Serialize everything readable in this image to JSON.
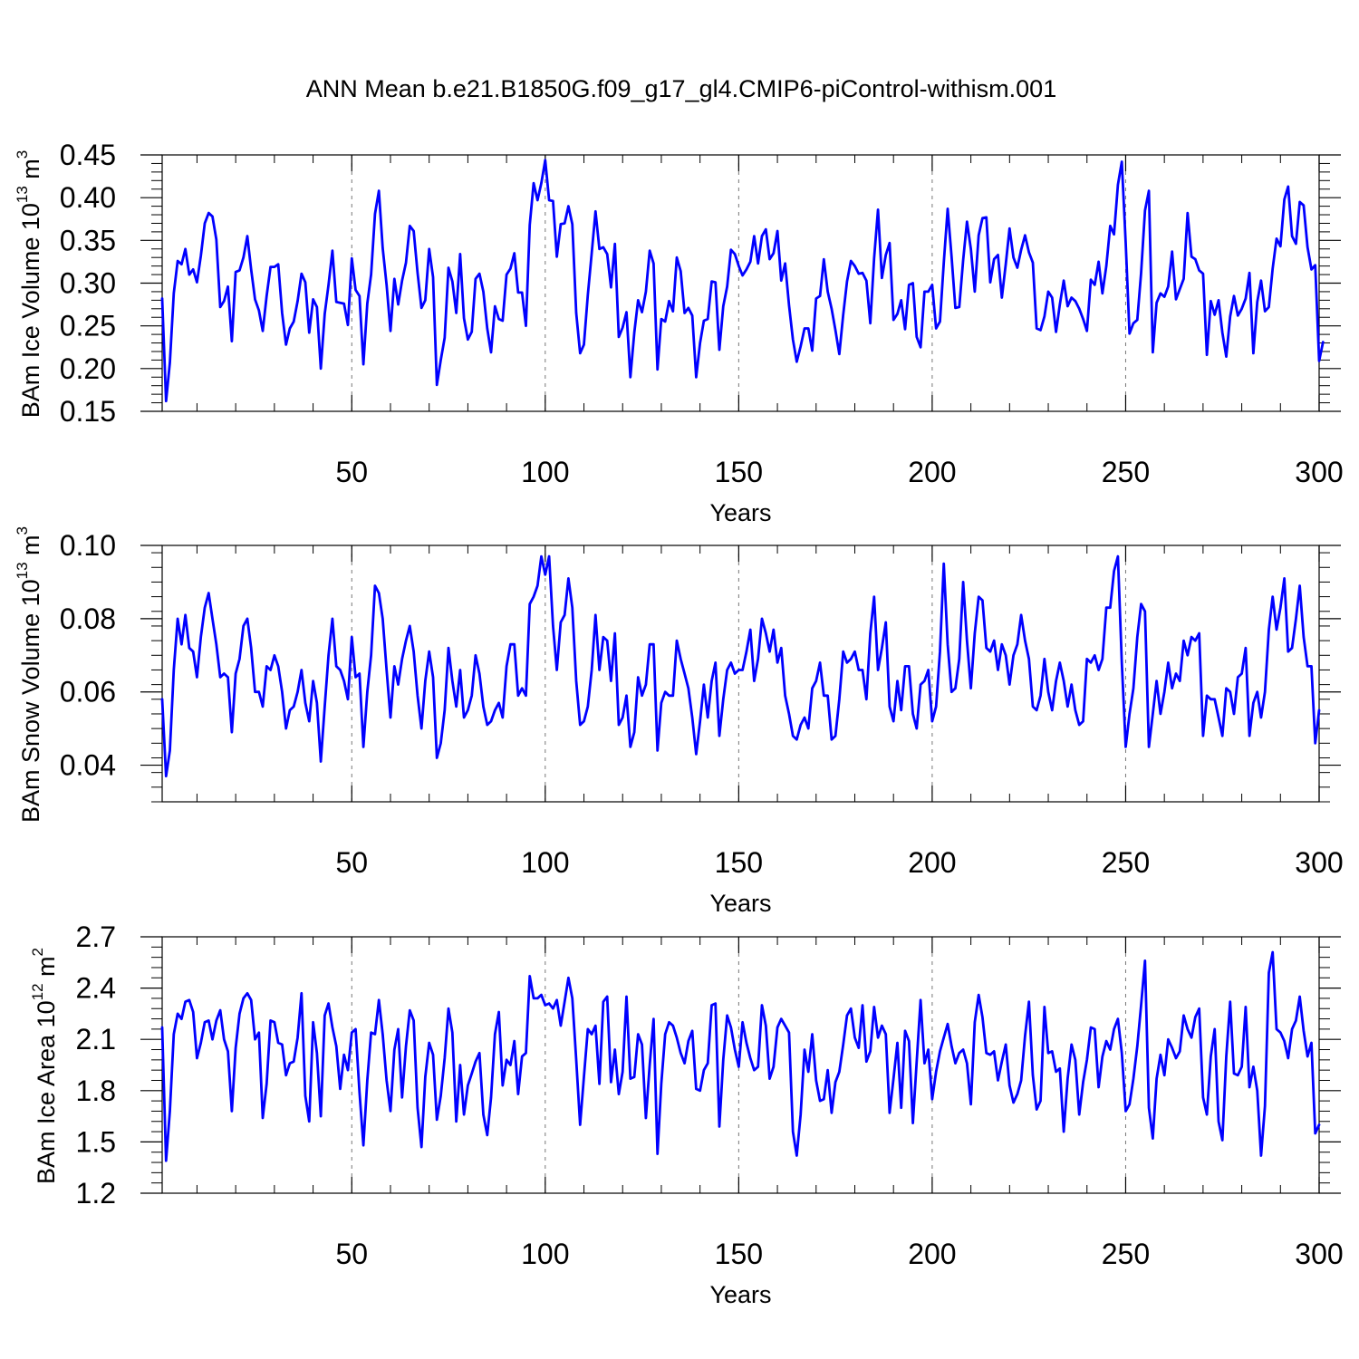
{
  "figure": {
    "title": "ANN Mean b.e21.B1850G.f09_g17_gl4.CMIP6-piControl-withism.001"
  },
  "style": {
    "line_color": "#0000ff",
    "axis_color": "#000000",
    "vline_color": "#777777"
  },
  "chart_data": [
    {
      "type": "line",
      "xlabel": "Years",
      "ylabel": "BAm Ice Volume 10",
      "ylabel_exp": "13",
      "ylabel_unit": "m",
      "ylabel_unit_exp": "3",
      "xlim": [
        1,
        300
      ],
      "ylim": [
        0.15,
        0.45
      ],
      "xticks": [
        50,
        100,
        150,
        200,
        250,
        300
      ],
      "xtick_labels": [
        "50",
        "100",
        "150",
        "200",
        "250",
        "300"
      ],
      "yticks": [
        0.15,
        0.2,
        0.25,
        0.3,
        0.35,
        0.4,
        0.45
      ],
      "ytick_labels": [
        "0.15",
        "0.20",
        "0.25",
        "0.30",
        "0.35",
        "0.40",
        "0.45"
      ],
      "vlines": [
        50,
        100,
        150,
        200,
        250
      ],
      "x_start": 1,
      "x_step": 1,
      "series": [
        {
          "values": [
            0.282,
            0.162,
            0.207,
            0.288,
            0.326,
            0.322,
            0.34,
            0.31,
            0.316,
            0.301,
            0.332,
            0.37,
            0.382,
            0.378,
            0.351,
            0.272,
            0.279,
            0.296,
            0.232,
            0.313,
            0.315,
            0.33,
            0.355,
            0.316,
            0.281,
            0.268,
            0.244,
            0.285,
            0.319,
            0.319,
            0.322,
            0.265,
            0.228,
            0.247,
            0.255,
            0.279,
            0.311,
            0.301,
            0.242,
            0.281,
            0.272,
            0.2,
            0.264,
            0.298,
            0.338,
            0.278,
            0.277,
            0.276,
            0.251,
            0.329,
            0.292,
            0.285,
            0.205,
            0.276,
            0.31,
            0.381,
            0.408,
            0.341,
            0.298,
            0.244,
            0.305,
            0.275,
            0.303,
            0.324,
            0.367,
            0.361,
            0.312,
            0.271,
            0.28,
            0.34,
            0.307,
            0.181,
            0.21,
            0.236,
            0.318,
            0.302,
            0.265,
            0.334,
            0.259,
            0.234,
            0.243,
            0.305,
            0.311,
            0.29,
            0.247,
            0.219,
            0.273,
            0.258,
            0.256,
            0.31,
            0.317,
            0.335,
            0.289,
            0.289,
            0.25,
            0.368,
            0.417,
            0.397,
            0.417,
            0.444,
            0.397,
            0.396,
            0.331,
            0.369,
            0.37,
            0.39,
            0.369,
            0.265,
            0.218,
            0.228,
            0.286,
            0.335,
            0.384,
            0.34,
            0.342,
            0.334,
            0.295,
            0.346,
            0.237,
            0.248,
            0.266,
            0.19,
            0.242,
            0.28,
            0.266,
            0.29,
            0.338,
            0.323,
            0.199,
            0.258,
            0.255,
            0.279,
            0.267,
            0.33,
            0.314,
            0.265,
            0.271,
            0.262,
            0.19,
            0.23,
            0.256,
            0.258,
            0.302,
            0.301,
            0.222,
            0.273,
            0.296,
            0.339,
            0.334,
            0.32,
            0.309,
            0.316,
            0.325,
            0.355,
            0.323,
            0.355,
            0.363,
            0.328,
            0.335,
            0.361,
            0.303,
            0.323,
            0.274,
            0.234,
            0.208,
            0.226,
            0.247,
            0.247,
            0.221,
            0.282,
            0.285,
            0.328,
            0.29,
            0.27,
            0.245,
            0.217,
            0.263,
            0.302,
            0.326,
            0.32,
            0.311,
            0.312,
            0.303,
            0.253,
            0.329,
            0.386,
            0.306,
            0.333,
            0.347,
            0.257,
            0.264,
            0.28,
            0.246,
            0.298,
            0.3,
            0.237,
            0.225,
            0.29,
            0.29,
            0.298,
            0.247,
            0.255,
            0.324,
            0.387,
            0.331,
            0.271,
            0.272,
            0.327,
            0.372,
            0.34,
            0.29,
            0.356,
            0.376,
            0.377,
            0.301,
            0.328,
            0.333,
            0.283,
            0.322,
            0.364,
            0.33,
            0.318,
            0.339,
            0.356,
            0.336,
            0.324,
            0.247,
            0.245,
            0.261,
            0.29,
            0.283,
            0.243,
            0.275,
            0.303,
            0.273,
            0.283,
            0.279,
            0.27,
            0.258,
            0.244,
            0.304,
            0.298,
            0.325,
            0.288,
            0.32,
            0.367,
            0.357,
            0.415,
            0.442,
            0.347,
            0.241,
            0.253,
            0.257,
            0.312,
            0.385,
            0.408,
            0.219,
            0.277,
            0.288,
            0.284,
            0.296,
            0.337,
            0.281,
            0.293,
            0.305,
            0.382,
            0.331,
            0.328,
            0.315,
            0.311,
            0.216,
            0.279,
            0.263,
            0.28,
            0.242,
            0.214,
            0.261,
            0.285,
            0.262,
            0.27,
            0.282,
            0.312,
            0.218,
            0.278,
            0.303,
            0.267,
            0.272,
            0.317,
            0.352,
            0.343,
            0.398,
            0.413,
            0.355,
            0.346,
            0.395,
            0.391,
            0.342,
            0.316,
            0.321,
            0.209,
            0.231
          ]
        }
      ]
    },
    {
      "type": "line",
      "xlabel": "Years",
      "ylabel": "BAm Snow Volume 10",
      "ylabel_exp": "13",
      "ylabel_unit": "m",
      "ylabel_unit_exp": "3",
      "xlim": [
        1,
        300
      ],
      "ylim": [
        0.03,
        0.1
      ],
      "xticks": [
        50,
        100,
        150,
        200,
        250,
        300
      ],
      "xtick_labels": [
        "50",
        "100",
        "150",
        "200",
        "250",
        "300"
      ],
      "yticks": [
        0.04,
        0.06,
        0.08,
        0.1
      ],
      "ytick_labels": [
        "0.04",
        "0.06",
        "0.08",
        "0.10"
      ],
      "vlines": [
        50,
        100,
        150,
        200,
        250
      ],
      "x_start": 1,
      "x_step": 1,
      "series": [
        {
          "values": [
            0.058,
            0.037,
            0.044,
            0.066,
            0.08,
            0.073,
            0.081,
            0.072,
            0.071,
            0.064,
            0.075,
            0.083,
            0.087,
            0.08,
            0.073,
            0.064,
            0.065,
            0.064,
            0.049,
            0.065,
            0.069,
            0.078,
            0.08,
            0.072,
            0.06,
            0.06,
            0.056,
            0.067,
            0.066,
            0.07,
            0.067,
            0.06,
            0.05,
            0.055,
            0.056,
            0.06,
            0.066,
            0.057,
            0.052,
            0.063,
            0.057,
            0.041,
            0.056,
            0.07,
            0.08,
            0.067,
            0.066,
            0.063,
            0.058,
            0.075,
            0.064,
            0.065,
            0.045,
            0.06,
            0.07,
            0.089,
            0.087,
            0.08,
            0.066,
            0.053,
            0.067,
            0.062,
            0.069,
            0.074,
            0.078,
            0.071,
            0.059,
            0.05,
            0.063,
            0.071,
            0.064,
            0.042,
            0.046,
            0.055,
            0.072,
            0.063,
            0.056,
            0.066,
            0.053,
            0.055,
            0.059,
            0.07,
            0.065,
            0.056,
            0.051,
            0.052,
            0.055,
            0.057,
            0.053,
            0.067,
            0.073,
            0.073,
            0.059,
            0.061,
            0.059,
            0.084,
            0.086,
            0.089,
            0.097,
            0.092,
            0.097,
            0.078,
            0.066,
            0.079,
            0.081,
            0.091,
            0.083,
            0.063,
            0.051,
            0.052,
            0.056,
            0.066,
            0.081,
            0.066,
            0.075,
            0.074,
            0.063,
            0.076,
            0.051,
            0.053,
            0.059,
            0.045,
            0.049,
            0.064,
            0.059,
            0.062,
            0.073,
            0.073,
            0.044,
            0.057,
            0.06,
            0.059,
            0.059,
            0.074,
            0.069,
            0.065,
            0.061,
            0.053,
            0.043,
            0.052,
            0.062,
            0.053,
            0.063,
            0.068,
            0.048,
            0.058,
            0.066,
            0.068,
            0.065,
            0.066,
            0.066,
            0.071,
            0.077,
            0.063,
            0.069,
            0.08,
            0.076,
            0.071,
            0.077,
            0.068,
            0.072,
            0.059,
            0.054,
            0.048,
            0.047,
            0.051,
            0.053,
            0.05,
            0.061,
            0.063,
            0.068,
            0.059,
            0.059,
            0.047,
            0.048,
            0.058,
            0.071,
            0.068,
            0.069,
            0.071,
            0.066,
            0.066,
            0.058,
            0.076,
            0.086,
            0.066,
            0.072,
            0.079,
            0.056,
            0.052,
            0.063,
            0.055,
            0.067,
            0.067,
            0.054,
            0.05,
            0.062,
            0.063,
            0.066,
            0.052,
            0.056,
            0.071,
            0.095,
            0.073,
            0.06,
            0.061,
            0.069,
            0.09,
            0.074,
            0.061,
            0.076,
            0.086,
            0.085,
            0.072,
            0.071,
            0.074,
            0.066,
            0.073,
            0.07,
            0.062,
            0.07,
            0.073,
            0.081,
            0.074,
            0.069,
            0.056,
            0.055,
            0.059,
            0.069,
            0.06,
            0.055,
            0.063,
            0.068,
            0.063,
            0.056,
            0.062,
            0.055,
            0.051,
            0.052,
            0.069,
            0.068,
            0.07,
            0.066,
            0.069,
            0.083,
            0.083,
            0.093,
            0.097,
            0.068,
            0.045,
            0.054,
            0.061,
            0.075,
            0.084,
            0.082,
            0.045,
            0.054,
            0.063,
            0.054,
            0.06,
            0.068,
            0.061,
            0.065,
            0.063,
            0.074,
            0.07,
            0.075,
            0.074,
            0.076,
            0.048,
            0.059,
            0.058,
            0.058,
            0.053,
            0.048,
            0.061,
            0.06,
            0.054,
            0.064,
            0.065,
            0.072,
            0.048,
            0.057,
            0.06,
            0.053,
            0.06,
            0.077,
            0.086,
            0.077,
            0.083,
            0.091,
            0.071,
            0.072,
            0.08,
            0.089,
            0.075,
            0.067,
            0.067,
            0.046,
            0.055
          ]
        }
      ]
    },
    {
      "type": "line",
      "xlabel": "Years",
      "ylabel": "BAm Ice Area 10",
      "ylabel_exp": "12",
      "ylabel_unit": "m",
      "ylabel_unit_exp": "2",
      "xlim": [
        1,
        300
      ],
      "ylim": [
        1.2,
        2.7
      ],
      "xticks": [
        50,
        100,
        150,
        200,
        250,
        300
      ],
      "xtick_labels": [
        "50",
        "100",
        "150",
        "200",
        "250",
        "300"
      ],
      "yticks": [
        1.2,
        1.5,
        1.8,
        2.1,
        2.4,
        2.7
      ],
      "ytick_labels": [
        "1.2",
        "1.5",
        "1.8",
        "2.1",
        "2.4",
        "2.7"
      ],
      "vlines": [
        50,
        100,
        150,
        200,
        250
      ],
      "x_start": 1,
      "x_step": 1,
      "series": [
        {
          "values": [
            2.17,
            1.39,
            1.68,
            2.13,
            2.25,
            2.22,
            2.32,
            2.33,
            2.26,
            1.99,
            2.08,
            2.2,
            2.21,
            2.1,
            2.21,
            2.27,
            2.1,
            2.03,
            1.68,
            2.05,
            2.25,
            2.34,
            2.37,
            2.33,
            2.1,
            2.14,
            1.64,
            1.84,
            2.21,
            2.2,
            2.08,
            2.07,
            1.89,
            1.96,
            1.97,
            2.11,
            2.37,
            1.77,
            1.62,
            2.2,
            2.02,
            1.65,
            2.24,
            2.31,
            2.17,
            2.06,
            1.81,
            2.01,
            1.92,
            2.14,
            2.16,
            1.79,
            1.48,
            1.86,
            2.14,
            2.13,
            2.33,
            2.13,
            1.86,
            1.68,
            2.04,
            2.16,
            1.76,
            2.06,
            2.27,
            2.21,
            1.7,
            1.47,
            1.88,
            2.08,
            2.01,
            1.63,
            1.77,
            1.99,
            2.28,
            2.14,
            1.62,
            1.95,
            1.66,
            1.83,
            1.9,
            1.97,
            2.02,
            1.66,
            1.54,
            1.76,
            2.13,
            2.26,
            1.83,
            1.98,
            1.95,
            2.09,
            1.78,
            2.0,
            2.02,
            2.47,
            2.34,
            2.34,
            2.36,
            2.3,
            2.31,
            2.28,
            2.33,
            2.18,
            2.32,
            2.46,
            2.34,
            1.98,
            1.6,
            1.88,
            2.16,
            2.13,
            2.18,
            1.84,
            2.32,
            2.35,
            1.85,
            2.04,
            1.78,
            1.91,
            2.35,
            1.87,
            1.88,
            2.13,
            2.07,
            1.64,
            1.95,
            2.22,
            1.43,
            1.84,
            2.13,
            2.2,
            2.18,
            2.11,
            2.02,
            1.96,
            2.09,
            2.15,
            1.81,
            1.8,
            1.92,
            1.96,
            2.3,
            2.31,
            1.59,
            1.98,
            2.24,
            2.17,
            2.04,
            1.94,
            2.2,
            2.08,
            1.99,
            1.92,
            1.94,
            2.3,
            2.18,
            1.87,
            1.94,
            2.17,
            2.22,
            2.18,
            2.14,
            1.56,
            1.42,
            1.66,
            2.04,
            1.91,
            2.13,
            1.86,
            1.74,
            1.75,
            1.92,
            1.67,
            1.85,
            1.91,
            2.07,
            2.24,
            2.28,
            2.11,
            2.05,
            2.3,
            1.97,
            2.03,
            2.29,
            2.11,
            2.18,
            2.13,
            1.67,
            1.87,
            2.08,
            1.7,
            2.15,
            2.09,
            1.61,
            1.97,
            2.33,
            1.96,
            2.04,
            1.75,
            1.91,
            2.03,
            2.11,
            2.19,
            2.06,
            1.96,
            2.02,
            2.04,
            1.96,
            1.72,
            2.2,
            2.36,
            2.23,
            2.02,
            2.01,
            2.03,
            1.86,
            1.97,
            2.07,
            1.83,
            1.73,
            1.78,
            1.86,
            2.12,
            2.32,
            1.89,
            1.69,
            1.74,
            2.29,
            2.02,
            2.03,
            1.91,
            1.93,
            1.56,
            1.87,
            2.07,
            1.98,
            1.66,
            1.85,
            1.98,
            2.17,
            2.16,
            1.82,
            2.0,
            2.09,
            2.04,
            2.16,
            2.22,
            2.02,
            1.68,
            1.72,
            1.87,
            2.06,
            2.3,
            2.56,
            1.7,
            1.52,
            1.87,
            2.01,
            1.89,
            2.1,
            2.05,
            1.99,
            2.03,
            2.24,
            2.16,
            2.11,
            2.23,
            2.28,
            1.76,
            1.66,
            2.0,
            2.16,
            1.62,
            1.51,
            2.0,
            2.32,
            1.9,
            1.89,
            1.94,
            2.29,
            1.82,
            1.94,
            1.8,
            1.42,
            1.71,
            2.49,
            2.61,
            2.16,
            2.14,
            2.09,
            1.99,
            2.16,
            2.21,
            2.35,
            2.15,
            2.0,
            2.08,
            1.55,
            1.6
          ]
        }
      ]
    }
  ]
}
